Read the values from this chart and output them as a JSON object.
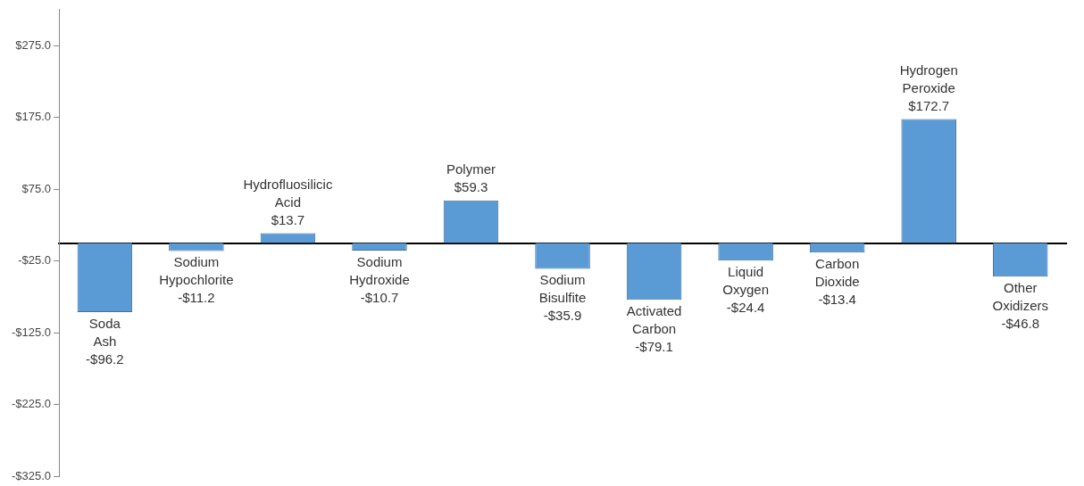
{
  "chart_data": {
    "type": "bar",
    "categories": [
      "Soda Ash",
      "Sodium Hypochlorite",
      "Hydrofluosilicic Acid",
      "Sodium Hydroxide",
      "Polymer",
      "Sodium Bisulfite",
      "Activated Carbon",
      "Liquid Oxygen",
      "Carbon Dioxide",
      "Hydrogen Peroxide",
      "Other Oxidizers"
    ],
    "values": [
      -96.2,
      -11.2,
      13.7,
      -10.7,
      59.3,
      -35.9,
      -79.1,
      -24.4,
      -13.4,
      172.7,
      -46.8
    ],
    "value_labels": [
      "-$96.2",
      "-$11.2",
      "$13.7",
      "-$10.7",
      "$59.3",
      "-$35.9",
      "-$79.1",
      "-$24.4",
      "-$13.4",
      "$172.7",
      "-$46.8"
    ],
    "color": "#5b9bd5",
    "ylim": [
      -325,
      325
    ],
    "yticks": [
      {
        "value": -325,
        "label": "-$325.0"
      },
      {
        "value": -225,
        "label": "-$225.0"
      },
      {
        "value": -125,
        "label": "-$125.0"
      },
      {
        "value": -25,
        "label": "-$25.0"
      },
      {
        "value": 75,
        "label": "$75.0"
      },
      {
        "value": 175,
        "label": "$175.0"
      },
      {
        "value": 275,
        "label": "$275.0"
      }
    ],
    "grid": false,
    "legend": false
  }
}
